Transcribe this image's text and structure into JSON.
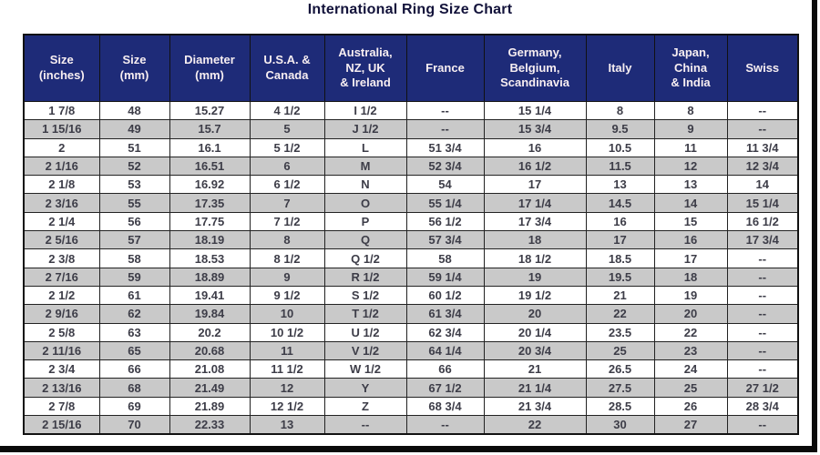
{
  "title": "International Ring Size Chart",
  "colors": {
    "header_bg": "#1e2b78",
    "header_text": "#f7eef1",
    "row_even_bg": "#c9c9c9",
    "row_odd_bg": "#ffffff",
    "cell_text": "#3d3d48",
    "border": "#111111",
    "title_text": "#12123a"
  },
  "chart_data": {
    "type": "table",
    "title": "International Ring Size Chart",
    "legend_position": "none",
    "grid": true,
    "columns": [
      "Size\n(inches)",
      "Size\n(mm)",
      "Diameter\n(mm)",
      "U.S.A. &\nCanada",
      "Australia,\nNZ, UK\n& Ireland",
      "France",
      "Germany,\nBelgium,\nScandinavia",
      "Italy",
      "Japan,\nChina\n& India",
      "Swiss"
    ],
    "rows": [
      [
        "1  7/8",
        "48",
        "15.27",
        "4 1/2",
        "I 1/2",
        "--",
        "15 1/4",
        "8",
        "8",
        "--"
      ],
      [
        "1 15/16",
        "49",
        "15.7",
        "5",
        "J 1/2",
        "--",
        "15 3/4",
        "9.5",
        "9",
        "--"
      ],
      [
        "2",
        "51",
        "16.1",
        "5 1/2",
        "L",
        "51 3/4",
        "16",
        "10.5",
        "11",
        "11 3/4"
      ],
      [
        "2  1/16",
        "52",
        "16.51",
        "6",
        "M",
        "52 3/4",
        "16 1/2",
        "11.5",
        "12",
        "12 3/4"
      ],
      [
        "2  1/8",
        "53",
        "16.92",
        "6 1/2",
        "N",
        "54",
        "17",
        "13",
        "13",
        "14"
      ],
      [
        "2  3/16",
        "55",
        "17.35",
        "7",
        "O",
        "55 1/4",
        "17 1/4",
        "14.5",
        "14",
        "15 1/4"
      ],
      [
        "2  1/4",
        "56",
        "17.75",
        "7 1/2",
        "P",
        "56 1/2",
        "17 3/4",
        "16",
        "15",
        "16 1/2"
      ],
      [
        "2  5/16",
        "57",
        "18.19",
        "8",
        "Q",
        "57 3/4",
        "18",
        "17",
        "16",
        "17 3/4"
      ],
      [
        "2  3/8",
        "58",
        "18.53",
        "8 1/2",
        "Q 1/2",
        "58",
        "18 1/2",
        "18.5",
        "17",
        "--"
      ],
      [
        "2  7/16",
        "59",
        "18.89",
        "9",
        "R 1/2",
        "59 1/4",
        "19",
        "19.5",
        "18",
        "--"
      ],
      [
        "2  1/2",
        "61",
        "19.41",
        "9 1/2",
        "S 1/2",
        "60 1/2",
        "19 1/2",
        "21",
        "19",
        "--"
      ],
      [
        "2  9/16",
        "62",
        "19.84",
        "10",
        "T 1/2",
        "61 3/4",
        "20",
        "22",
        "20",
        "--"
      ],
      [
        "2  5/8",
        "63",
        "20.2",
        "10 1/2",
        "U 1/2",
        "62 3/4",
        "20 1/4",
        "23.5",
        "22",
        "--"
      ],
      [
        "2 11/16",
        "65",
        "20.68",
        "11",
        "V 1/2",
        "64 1/4",
        "20 3/4",
        "25",
        "23",
        "--"
      ],
      [
        "2  3/4",
        "66",
        "21.08",
        "11 1/2",
        "W 1/2",
        "66",
        "21",
        "26.5",
        "24",
        "--"
      ],
      [
        "2 13/16",
        "68",
        "21.49",
        "12",
        "Y",
        "67 1/2",
        "21 1/4",
        "27.5",
        "25",
        "27 1/2"
      ],
      [
        "2  7/8",
        "69",
        "21.89",
        "12 1/2",
        "Z",
        "68 3/4",
        "21 3/4",
        "28.5",
        "26",
        "28 3/4"
      ],
      [
        "2 15/16",
        "70",
        "22.33",
        "13",
        "--",
        "--",
        "22",
        "30",
        "27",
        "--"
      ]
    ]
  }
}
